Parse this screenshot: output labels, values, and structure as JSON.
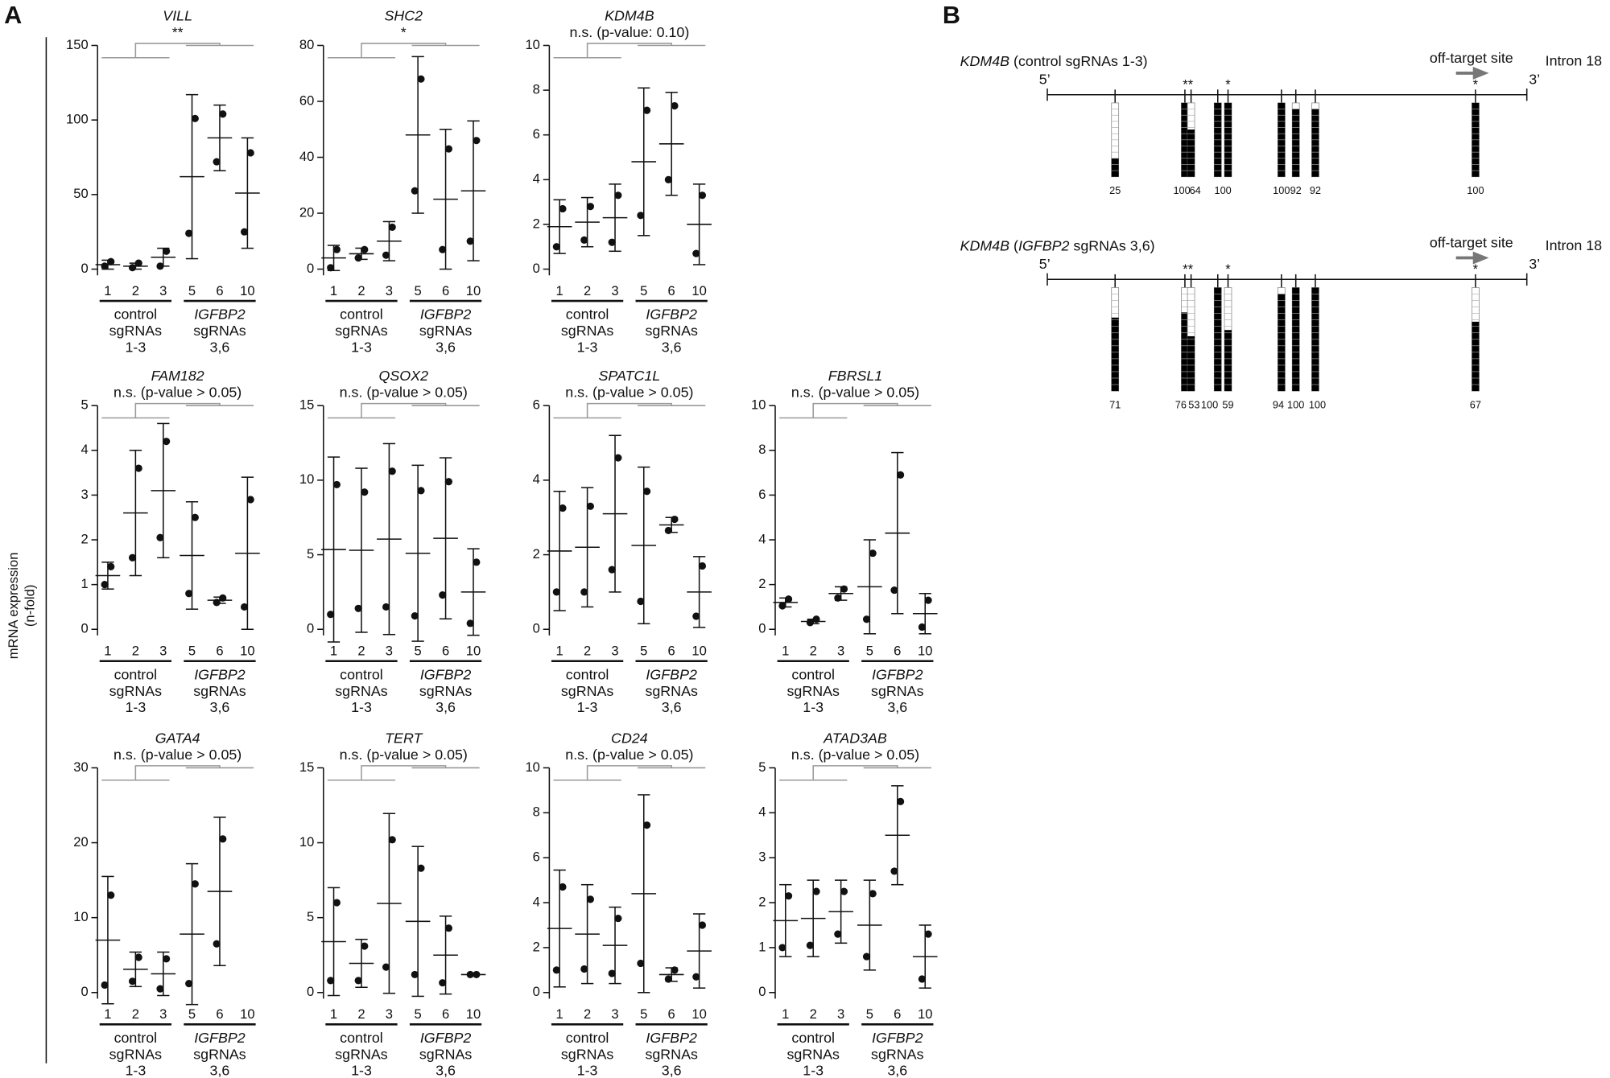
{
  "panel_labels": [
    "A",
    "B"
  ],
  "y_label": [
    "mRNA expression",
    "(n-fold)"
  ],
  "chart_data": [
    {
      "type": "errorbar",
      "title": "VILL",
      "subtitle": "**",
      "categories": [
        "1",
        "2",
        "3",
        "5",
        "6",
        "10"
      ],
      "points": [
        [
          2,
          5
        ],
        [
          1,
          4
        ],
        [
          2,
          12
        ],
        [
          24,
          101
        ],
        [
          72,
          104
        ],
        [
          25,
          78
        ]
      ],
      "mean": [
        3,
        2,
        8,
        62,
        88,
        51
      ],
      "sd": [
        3,
        2,
        6,
        55,
        22,
        37
      ],
      "ylim": [
        0,
        150
      ],
      "yticks": [
        0,
        50,
        100,
        150
      ],
      "groups": [
        {
          "lines": [
            "control",
            "sgRNAs",
            "1-3"
          ],
          "italic_first": false
        },
        {
          "lines": [
            "IGFBP2",
            "sgRNAs",
            "3,6"
          ],
          "italic_first": true
        }
      ]
    },
    {
      "type": "errorbar",
      "title": "SHC2",
      "subtitle": "*",
      "categories": [
        "1",
        "2",
        "3",
        "5",
        "6",
        "10"
      ],
      "points": [
        [
          0.5,
          7
        ],
        [
          4,
          7
        ],
        [
          5,
          15
        ],
        [
          28,
          68
        ],
        [
          7,
          43
        ],
        [
          10,
          46
        ]
      ],
      "mean": [
        4,
        5.5,
        10,
        48,
        25,
        28
      ],
      "sd": [
        4.5,
        2,
        7,
        28,
        25,
        25
      ],
      "ylim": [
        0,
        80
      ],
      "yticks": [
        0,
        20,
        40,
        60,
        80
      ],
      "groups": [
        {
          "lines": [
            "control",
            "sgRNAs",
            "1-3"
          ],
          "italic_first": false
        },
        {
          "lines": [
            "IGFBP2",
            "sgRNAs",
            "3,6"
          ],
          "italic_first": true
        }
      ]
    },
    {
      "type": "errorbar",
      "title": "KDM4B",
      "subtitle": "n.s. (p-value: 0.10)",
      "categories": [
        "1",
        "2",
        "3",
        "5",
        "6",
        "10"
      ],
      "points": [
        [
          1,
          2.7
        ],
        [
          1.3,
          2.8
        ],
        [
          1.2,
          3.3
        ],
        [
          2.4,
          7.1
        ],
        [
          4,
          7.3
        ],
        [
          0.7,
          3.3
        ]
      ],
      "mean": [
        1.9,
        2.1,
        2.3,
        4.8,
        5.6,
        2
      ],
      "sd": [
        1.2,
        1.1,
        1.5,
        3.3,
        2.3,
        1.8
      ],
      "ylim": [
        0,
        10
      ],
      "yticks": [
        0,
        2,
        4,
        6,
        8,
        10
      ],
      "groups": [
        {
          "lines": [
            "control",
            "sgRNAs",
            "1-3"
          ],
          "italic_first": false
        },
        {
          "lines": [
            "IGFBP2",
            "sgRNAs",
            "3,6"
          ],
          "italic_first": true
        }
      ]
    },
    {
      "type": "errorbar",
      "title": "FAM182",
      "subtitle": "n.s. (p-value > 0.05)",
      "categories": [
        "1",
        "2",
        "3",
        "5",
        "6",
        "10"
      ],
      "points": [
        [
          1.0,
          1.4
        ],
        [
          1.6,
          3.6
        ],
        [
          2.05,
          4.2
        ],
        [
          0.8,
          2.5
        ],
        [
          0.6,
          0.7
        ],
        [
          0.5,
          2.9
        ]
      ],
      "mean": [
        1.2,
        2.6,
        3.1,
        1.65,
        0.65,
        1.7
      ],
      "sd": [
        0.3,
        1.4,
        1.5,
        1.2,
        0.07,
        1.7
      ],
      "ylim": [
        0,
        5
      ],
      "yticks": [
        0,
        1,
        2,
        3,
        4,
        5
      ],
      "groups": [
        {
          "lines": [
            "control",
            "sgRNAs",
            "1-3"
          ],
          "italic_first": false
        },
        {
          "lines": [
            "IGFBP2",
            "sgRNAs",
            "3,6"
          ],
          "italic_first": true
        }
      ]
    },
    {
      "type": "errorbar",
      "title": "QSOX2",
      "subtitle": "n.s. (p-value > 0.05)",
      "categories": [
        "1",
        "2",
        "3",
        "5",
        "6",
        "10"
      ],
      "points": [
        [
          1,
          9.7
        ],
        [
          1.4,
          9.2
        ],
        [
          1.5,
          10.6
        ],
        [
          0.9,
          9.3
        ],
        [
          2.3,
          9.9
        ],
        [
          0.4,
          4.5
        ]
      ],
      "mean": [
        5.35,
        5.3,
        6.05,
        5.1,
        6.1,
        2.5
      ],
      "sd": [
        6.2,
        5.5,
        6.4,
        5.9,
        5.4,
        2.9
      ],
      "ylim": [
        0,
        15
      ],
      "yticks": [
        0,
        5,
        10,
        15
      ],
      "groups": [
        {
          "lines": [
            "control",
            "sgRNAs",
            "1-3"
          ],
          "italic_first": false
        },
        {
          "lines": [
            "IGFBP2",
            "sgRNAs",
            "3,6"
          ],
          "italic_first": true
        }
      ]
    },
    {
      "type": "errorbar",
      "title": "SPATC1L",
      "subtitle": "n.s. (p-value > 0.05)",
      "categories": [
        "1",
        "2",
        "3",
        "5",
        "6",
        "10"
      ],
      "points": [
        [
          1,
          3.25
        ],
        [
          1,
          3.3
        ],
        [
          1.6,
          4.6
        ],
        [
          0.75,
          3.7
        ],
        [
          2.65,
          2.95
        ],
        [
          0.35,
          1.7
        ]
      ],
      "mean": [
        2.1,
        2.2,
        3.1,
        2.25,
        2.8,
        1.0
      ],
      "sd": [
        1.6,
        1.6,
        2.1,
        2.1,
        0.2,
        0.95
      ],
      "ylim": [
        0,
        6
      ],
      "yticks": [
        0,
        2,
        4,
        6
      ],
      "groups": [
        {
          "lines": [
            "control",
            "sgRNAs",
            "1-3"
          ],
          "italic_first": false
        },
        {
          "lines": [
            "IGFBP2",
            "sgRNAs",
            "3,6"
          ],
          "italic_first": true
        }
      ]
    },
    {
      "type": "errorbar",
      "title": "FBRSL1",
      "subtitle": "n.s. (p-value > 0.05)",
      "categories": [
        "1",
        "2",
        "3",
        "5",
        "6",
        "10"
      ],
      "points": [
        [
          1.05,
          1.35
        ],
        [
          0.3,
          0.45
        ],
        [
          1.4,
          1.8
        ],
        [
          0.45,
          3.4
        ],
        [
          1.75,
          6.9
        ],
        [
          0.1,
          1.3
        ]
      ],
      "mean": [
        1.2,
        0.35,
        1.6,
        1.9,
        4.3,
        0.7
      ],
      "sd": [
        0.2,
        0.1,
        0.3,
        2.1,
        3.6,
        0.9
      ],
      "ylim": [
        0,
        10
      ],
      "yticks": [
        0,
        2,
        4,
        6,
        8,
        10
      ],
      "groups": [
        {
          "lines": [
            "control",
            "sgRNAs",
            "1-3"
          ],
          "italic_first": false
        },
        {
          "lines": [
            "IGFBP2",
            "sgRNAs",
            "3,6"
          ],
          "italic_first": true
        }
      ]
    },
    {
      "type": "errorbar",
      "title": "GATA4",
      "subtitle": "n.s. (p-value > 0.05)",
      "categories": [
        "1",
        "2",
        "3",
        "5",
        "6",
        "10"
      ],
      "points": [
        [
          1,
          13
        ],
        [
          1.5,
          4.7
        ],
        [
          0.5,
          4.5
        ],
        [
          1.2,
          14.5
        ],
        [
          6.5,
          20.5
        ],
        null
      ],
      "mean": [
        7,
        3.1,
        2.5,
        7.8,
        13.5,
        null
      ],
      "sd": [
        8.5,
        2.3,
        2.9,
        9.4,
        9.9,
        null
      ],
      "ylim": [
        0,
        30
      ],
      "yticks": [
        0,
        10,
        20,
        30
      ],
      "groups": [
        {
          "lines": [
            "control",
            "sgRNAs",
            "1-3"
          ],
          "italic_first": false
        },
        {
          "lines": [
            "IGFBP2",
            "sgRNAs",
            "3,6"
          ],
          "italic_first": true
        }
      ]
    },
    {
      "type": "errorbar",
      "title": "TERT",
      "subtitle": "n.s. (p-value > 0.05)",
      "categories": [
        "1",
        "2",
        "3",
        "5",
        "6",
        "10"
      ],
      "points": [
        [
          0.8,
          6
        ],
        [
          0.8,
          3.1
        ],
        [
          1.7,
          10.2
        ],
        [
          1.2,
          8.3
        ],
        [
          0.65,
          4.3
        ],
        [
          1.2,
          1.2
        ]
      ],
      "mean": [
        3.4,
        1.95,
        5.95,
        4.75,
        2.5,
        1.2
      ],
      "sd": [
        3.6,
        1.6,
        6,
        5,
        2.6,
        0.05
      ],
      "ylim": [
        0,
        15
      ],
      "yticks": [
        0,
        5,
        10,
        15
      ],
      "groups": [
        {
          "lines": [
            "control",
            "sgRNAs",
            "1-3"
          ],
          "italic_first": false
        },
        {
          "lines": [
            "IGFBP2",
            "sgRNAs",
            "3,6"
          ],
          "italic_first": true
        }
      ]
    },
    {
      "type": "errorbar",
      "title": "CD24",
      "subtitle": "n.s. (p-value > 0.05)",
      "categories": [
        "1",
        "2",
        "3",
        "5",
        "6",
        "10"
      ],
      "points": [
        [
          1,
          4.7
        ],
        [
          1.05,
          4.15
        ],
        [
          0.85,
          3.3
        ],
        [
          1.3,
          7.45
        ],
        [
          0.6,
          1.0
        ],
        [
          0.7,
          3.0
        ]
      ],
      "mean": [
        2.85,
        2.6,
        2.1,
        4.4,
        0.8,
        1.85
      ],
      "sd": [
        2.6,
        2.2,
        1.7,
        4.4,
        0.3,
        1.65
      ],
      "ylim": [
        0,
        10
      ],
      "yticks": [
        0,
        2,
        4,
        6,
        8,
        10
      ],
      "groups": [
        {
          "lines": [
            "control",
            "sgRNAs",
            "1-3"
          ],
          "italic_first": false
        },
        {
          "lines": [
            "IGFBP2",
            "sgRNAs",
            "3,6"
          ],
          "italic_first": true
        }
      ]
    },
    {
      "type": "errorbar",
      "title": "ATAD3AB",
      "subtitle": "n.s. (p-value > 0.05)",
      "categories": [
        "1",
        "2",
        "3",
        "5",
        "6",
        "10"
      ],
      "points": [
        [
          1.0,
          2.15
        ],
        [
          1.05,
          2.25
        ],
        [
          1.3,
          2.25
        ],
        [
          0.8,
          2.2
        ],
        [
          2.7,
          4.25
        ],
        [
          0.3,
          1.3
        ]
      ],
      "mean": [
        1.6,
        1.65,
        1.8,
        1.5,
        3.5,
        0.8
      ],
      "sd": [
        0.8,
        0.85,
        0.7,
        1.0,
        1.1,
        0.7
      ],
      "ylim": [
        0,
        5
      ],
      "yticks": [
        0,
        1,
        2,
        3,
        4,
        5
      ],
      "groups": [
        {
          "lines": [
            "control",
            "sgRNAs",
            "1-3"
          ],
          "italic_first": false
        },
        {
          "lines": [
            "IGFBP2",
            "sgRNAs",
            "3,6"
          ],
          "italic_first": true
        }
      ]
    }
  ],
  "diagram": {
    "tracks": [
      {
        "title_parts": [
          {
            "text": "KDM4B",
            "italic": true
          },
          {
            "text": " (control sgRNAs 1-3)",
            "italic": false
          }
        ],
        "five_prime": "5’",
        "three_prime": "3’",
        "off_target": "off-target site",
        "intron": "Intron 18",
        "stars": [
          "**",
          "*",
          "*"
        ],
        "percentages": [
          25,
          100,
          64,
          100,
          100,
          92,
          92,
          100
        ]
      },
      {
        "title_parts": [
          {
            "text": "KDM4B",
            "italic": true
          },
          {
            "text": " (",
            "italic": false
          },
          {
            "text": "IGFBP2",
            "italic": true
          },
          {
            "text": " sgRNAs 3,6)",
            "italic": false
          }
        ],
        "five_prime": "5’",
        "three_prime": "3’",
        "off_target": "off-target site",
        "intron": "Intron 18",
        "stars": [
          "**",
          "*",
          "*"
        ],
        "percentages": [
          71,
          76,
          53,
          100,
          59,
          94,
          100,
          100,
          67
        ]
      }
    ]
  }
}
